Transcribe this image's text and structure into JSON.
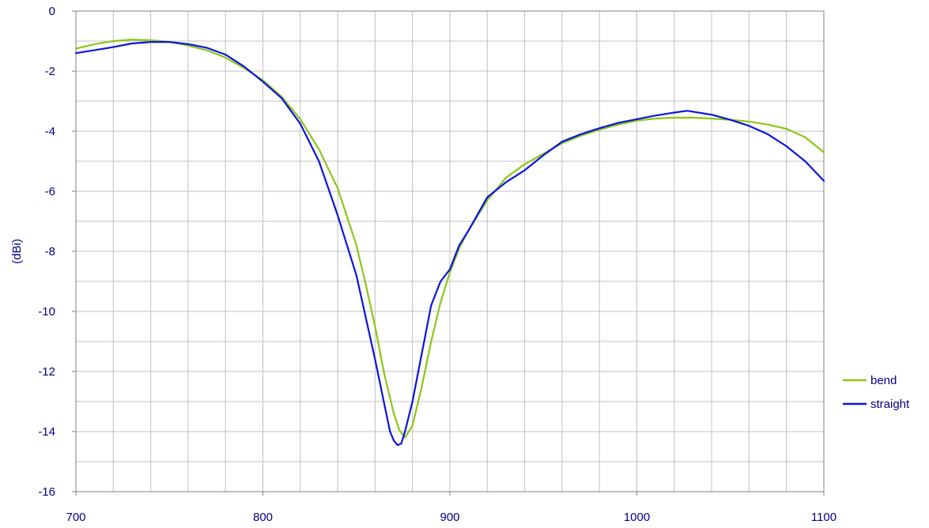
{
  "chart_data": {
    "type": "line",
    "title": "",
    "xlabel": "",
    "ylabel": "(dBi)",
    "xlim": [
      700,
      1100
    ],
    "ylim": [
      -16,
      0
    ],
    "x_ticks": [
      700,
      800,
      900,
      1000,
      1100
    ],
    "x_tick_labels": [
      "700",
      "800",
      "900",
      "1000",
      "1100"
    ],
    "y_ticks": [
      0,
      -2,
      -4,
      -6,
      -8,
      -10,
      -12,
      -14,
      -16
    ],
    "y_tick_labels": [
      "0",
      "-2",
      "-4",
      "-6",
      "-8",
      "-10",
      "-12",
      "-14",
      "-16"
    ],
    "grid": true,
    "legend_position": "right",
    "series": [
      {
        "name": "bend",
        "color": "#8cc618",
        "x": [
          700,
          710,
          720,
          730,
          740,
          750,
          760,
          770,
          780,
          790,
          800,
          810,
          820,
          830,
          840,
          850,
          855,
          860,
          865,
          870,
          873,
          876,
          880,
          885,
          890,
          895,
          900,
          905,
          910,
          920,
          930,
          940,
          950,
          960,
          970,
          980,
          990,
          1000,
          1010,
          1020,
          1030,
          1040,
          1050,
          1060,
          1070,
          1080,
          1090,
          1100
        ],
        "values": [
          -1.25,
          -1.1,
          -1.0,
          -0.95,
          -0.97,
          -1.02,
          -1.15,
          -1.3,
          -1.55,
          -1.9,
          -2.3,
          -2.85,
          -3.6,
          -4.6,
          -5.9,
          -7.8,
          -9.1,
          -10.5,
          -12.1,
          -13.4,
          -13.95,
          -14.2,
          -13.8,
          -12.5,
          -11.0,
          -9.7,
          -8.7,
          -7.9,
          -7.3,
          -6.3,
          -5.55,
          -5.1,
          -4.75,
          -4.4,
          -4.15,
          -3.95,
          -3.78,
          -3.65,
          -3.58,
          -3.55,
          -3.55,
          -3.58,
          -3.62,
          -3.68,
          -3.78,
          -3.92,
          -4.2,
          -4.7
        ]
      },
      {
        "name": "straight",
        "color": "#0a14e0",
        "x": [
          700,
          710,
          720,
          730,
          740,
          750,
          760,
          770,
          780,
          790,
          800,
          810,
          820,
          830,
          840,
          850,
          855,
          860,
          865,
          868,
          870,
          872,
          874,
          876,
          880,
          885,
          890,
          895,
          900,
          905,
          910,
          920,
          930,
          940,
          950,
          960,
          970,
          980,
          990,
          1000,
          1010,
          1020,
          1027,
          1040,
          1050,
          1060,
          1070,
          1080,
          1090,
          1100
        ],
        "values": [
          -1.4,
          -1.3,
          -1.2,
          -1.08,
          -1.03,
          -1.03,
          -1.1,
          -1.22,
          -1.45,
          -1.85,
          -2.35,
          -2.9,
          -3.75,
          -5.0,
          -6.8,
          -8.8,
          -10.2,
          -11.6,
          -13.1,
          -14.0,
          -14.3,
          -14.45,
          -14.4,
          -14.0,
          -13.0,
          -11.4,
          -9.8,
          -9.0,
          -8.6,
          -7.8,
          -7.3,
          -6.2,
          -5.7,
          -5.3,
          -4.8,
          -4.35,
          -4.1,
          -3.9,
          -3.72,
          -3.6,
          -3.48,
          -3.38,
          -3.32,
          -3.45,
          -3.62,
          -3.82,
          -4.1,
          -4.5,
          -5.0,
          -5.65
        ]
      }
    ]
  }
}
